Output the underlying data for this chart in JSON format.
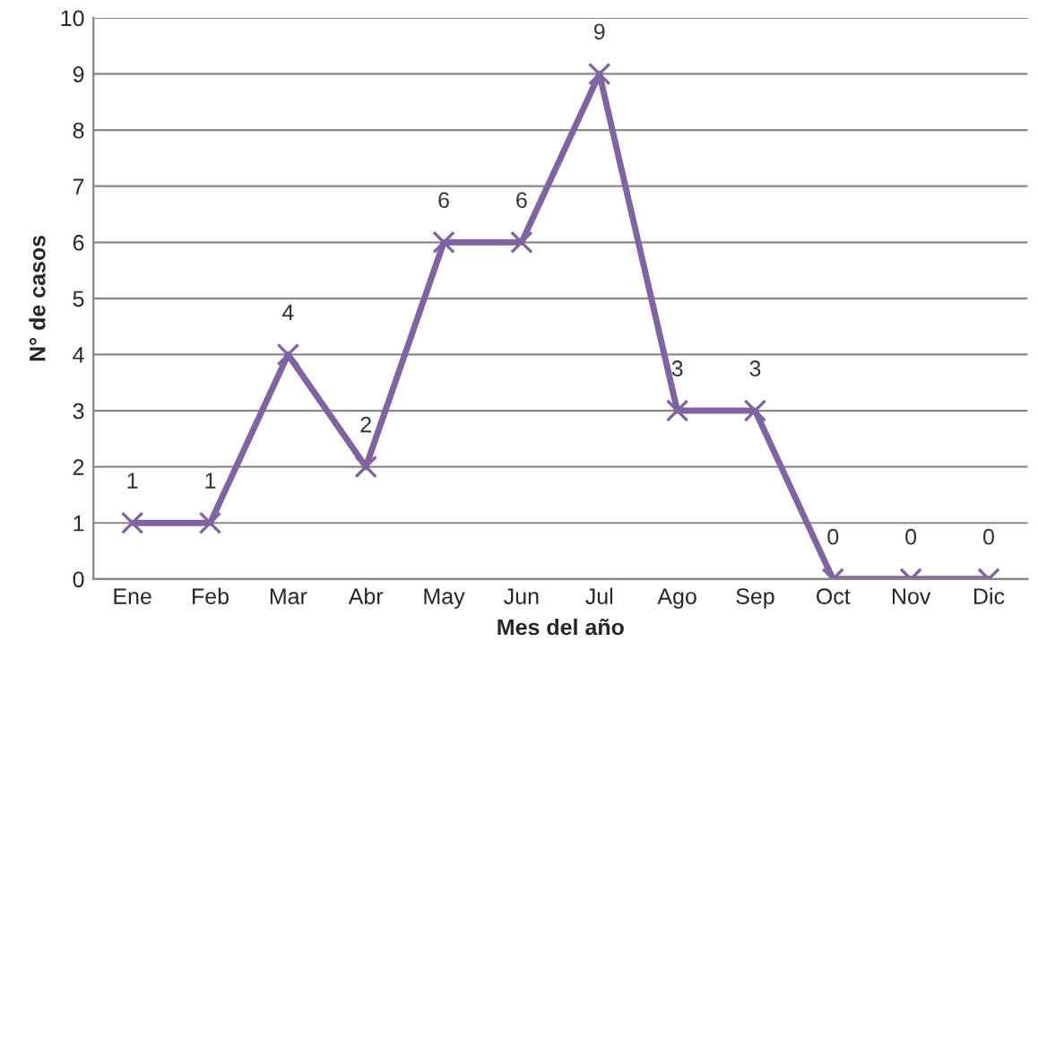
{
  "chart_data": {
    "type": "line",
    "xlabel": "Mes del año",
    "ylabel": "N° de casos",
    "categories": [
      "Ene",
      "Feb",
      "Mar",
      "Abr",
      "May",
      "Jun",
      "Jul",
      "Ago",
      "Sep",
      "Oct",
      "Nov",
      "Dic"
    ],
    "series": [
      {
        "color": "#8064a2",
        "values": [
          1,
          1,
          4,
          2,
          6,
          6,
          9,
          3,
          3,
          0,
          0,
          0
        ]
      }
    ],
    "ylim": [
      0,
      10
    ],
    "yticks": [
      0,
      1,
      2,
      3,
      4,
      5,
      6,
      7,
      8,
      9,
      10
    ],
    "grid": "y",
    "marker": "cross",
    "line_style": "solid",
    "data_labels": true,
    "legend": false
  }
}
